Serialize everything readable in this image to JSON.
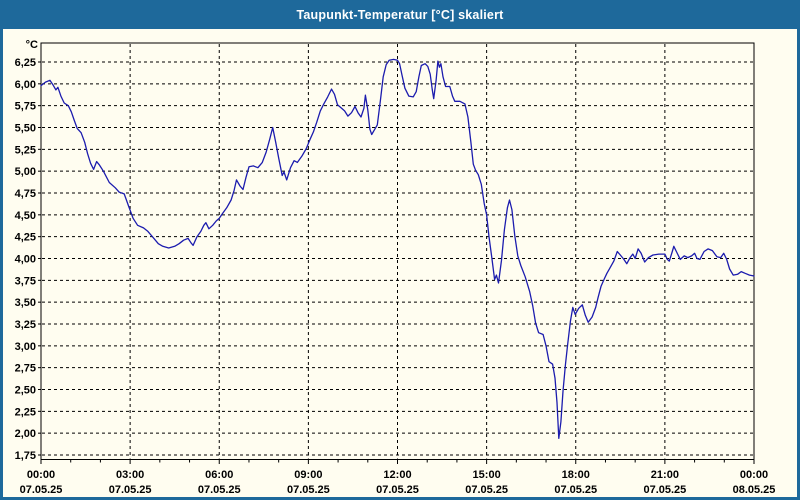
{
  "window": {
    "title": "Taupunkt-Temperatur [°C] skaliert",
    "colors": {
      "titlebar": "#1e699b",
      "title_text": "#ffffff",
      "background": "#fffdf0",
      "line": "#1c1cae",
      "grid": "#000000",
      "axis_text": "#000000"
    }
  },
  "chart_data": {
    "type": "line",
    "title": "Taupunkt-Temperatur [°C] skaliert",
    "unit_label": "°C",
    "legend": "none",
    "grid": "dashed",
    "x_axis": {
      "hours_span": 24,
      "major_step_hours": 3,
      "minor_step_hours": 1,
      "ticks": [
        {
          "time": "00:00",
          "date": "07.05.25"
        },
        {
          "time": "03:00",
          "date": "07.05.25"
        },
        {
          "time": "06:00",
          "date": "07.05.25"
        },
        {
          "time": "09:00",
          "date": "07.05.25"
        },
        {
          "time": "12:00",
          "date": "07.05.25"
        },
        {
          "time": "15:00",
          "date": "07.05.25"
        },
        {
          "time": "18:00",
          "date": "07.05.25"
        },
        {
          "time": "21:00",
          "date": "07.05.25"
        },
        {
          "time": "00:00",
          "date": "08.05.25"
        }
      ]
    },
    "y_axis": {
      "min": 1.75,
      "max": 6.25,
      "step": 0.25,
      "decimal_separator": ",",
      "tick_labels": [
        "6,25",
        "6,00",
        "5,75",
        "5,50",
        "5,25",
        "5,00",
        "4,75",
        "4,50",
        "4,25",
        "4,00",
        "3,75",
        "3,50",
        "3,25",
        "3,00",
        "2,75",
        "2,50",
        "2,25",
        "2,00",
        "1,75"
      ]
    },
    "series": [
      {
        "name": "Taupunkt-Temperatur",
        "points": [
          [
            0.0,
            5.98
          ],
          [
            0.15,
            6.02
          ],
          [
            0.3,
            6.04
          ],
          [
            0.4,
            5.99
          ],
          [
            0.5,
            5.93
          ],
          [
            0.57,
            5.96
          ],
          [
            0.67,
            5.86
          ],
          [
            0.78,
            5.78
          ],
          [
            0.92,
            5.75
          ],
          [
            1.02,
            5.68
          ],
          [
            1.12,
            5.58
          ],
          [
            1.22,
            5.49
          ],
          [
            1.35,
            5.44
          ],
          [
            1.47,
            5.33
          ],
          [
            1.57,
            5.2
          ],
          [
            1.67,
            5.09
          ],
          [
            1.77,
            5.02
          ],
          [
            1.87,
            5.11
          ],
          [
            1.97,
            5.07
          ],
          [
            2.1,
            5.0
          ],
          [
            2.3,
            4.87
          ],
          [
            2.5,
            4.81
          ],
          [
            2.63,
            4.76
          ],
          [
            2.8,
            4.74
          ],
          [
            2.95,
            4.6
          ],
          [
            3.1,
            4.46
          ],
          [
            3.25,
            4.38
          ],
          [
            3.45,
            4.35
          ],
          [
            3.6,
            4.31
          ],
          [
            3.8,
            4.23
          ],
          [
            3.95,
            4.17
          ],
          [
            4.1,
            4.14
          ],
          [
            4.3,
            4.12
          ],
          [
            4.5,
            4.14
          ],
          [
            4.65,
            4.17
          ],
          [
            4.8,
            4.21
          ],
          [
            4.95,
            4.23
          ],
          [
            5.05,
            4.18
          ],
          [
            5.12,
            4.15
          ],
          [
            5.25,
            4.25
          ],
          [
            5.38,
            4.31
          ],
          [
            5.48,
            4.38
          ],
          [
            5.55,
            4.41
          ],
          [
            5.65,
            4.34
          ],
          [
            5.78,
            4.38
          ],
          [
            5.9,
            4.43
          ],
          [
            6.0,
            4.46
          ],
          [
            6.12,
            4.52
          ],
          [
            6.25,
            4.58
          ],
          [
            6.4,
            4.67
          ],
          [
            6.5,
            4.78
          ],
          [
            6.58,
            4.9
          ],
          [
            6.7,
            4.83
          ],
          [
            6.8,
            4.79
          ],
          [
            6.9,
            4.93
          ],
          [
            7.0,
            5.05
          ],
          [
            7.15,
            5.06
          ],
          [
            7.3,
            5.04
          ],
          [
            7.45,
            5.1
          ],
          [
            7.58,
            5.22
          ],
          [
            7.7,
            5.37
          ],
          [
            7.8,
            5.5
          ],
          [
            7.9,
            5.33
          ],
          [
            8.0,
            5.15
          ],
          [
            8.12,
            4.95
          ],
          [
            8.18,
            4.99
          ],
          [
            8.27,
            4.9
          ],
          [
            8.4,
            5.04
          ],
          [
            8.52,
            5.12
          ],
          [
            8.63,
            5.1
          ],
          [
            8.78,
            5.17
          ],
          [
            8.93,
            5.26
          ],
          [
            9.05,
            5.36
          ],
          [
            9.17,
            5.45
          ],
          [
            9.28,
            5.56
          ],
          [
            9.4,
            5.69
          ],
          [
            9.52,
            5.77
          ],
          [
            9.65,
            5.85
          ],
          [
            9.78,
            5.94
          ],
          [
            9.88,
            5.88
          ],
          [
            9.98,
            5.76
          ],
          [
            10.12,
            5.72
          ],
          [
            10.22,
            5.69
          ],
          [
            10.33,
            5.63
          ],
          [
            10.45,
            5.67
          ],
          [
            10.57,
            5.74
          ],
          [
            10.67,
            5.67
          ],
          [
            10.77,
            5.62
          ],
          [
            10.87,
            5.72
          ],
          [
            10.92,
            5.87
          ],
          [
            11.0,
            5.7
          ],
          [
            11.07,
            5.48
          ],
          [
            11.13,
            5.42
          ],
          [
            11.22,
            5.47
          ],
          [
            11.32,
            5.53
          ],
          [
            11.42,
            5.8
          ],
          [
            11.52,
            6.08
          ],
          [
            11.62,
            6.22
          ],
          [
            11.72,
            6.27
          ],
          [
            11.87,
            6.28
          ],
          [
            12.0,
            6.27
          ],
          [
            12.07,
            6.23
          ],
          [
            12.15,
            6.1
          ],
          [
            12.25,
            5.95
          ],
          [
            12.38,
            5.86
          ],
          [
            12.53,
            5.85
          ],
          [
            12.63,
            5.91
          ],
          [
            12.72,
            6.08
          ],
          [
            12.8,
            6.21
          ],
          [
            12.93,
            6.23
          ],
          [
            13.02,
            6.2
          ],
          [
            13.1,
            6.11
          ],
          [
            13.17,
            5.93
          ],
          [
            13.22,
            5.83
          ],
          [
            13.3,
            6.04
          ],
          [
            13.36,
            6.26
          ],
          [
            13.41,
            6.19
          ],
          [
            13.46,
            6.23
          ],
          [
            13.53,
            6.08
          ],
          [
            13.62,
            5.97
          ],
          [
            13.76,
            5.97
          ],
          [
            13.85,
            5.86
          ],
          [
            13.93,
            5.8
          ],
          [
            14.1,
            5.8
          ],
          [
            14.27,
            5.77
          ],
          [
            14.37,
            5.62
          ],
          [
            14.47,
            5.33
          ],
          [
            14.55,
            5.08
          ],
          [
            14.63,
            5.01
          ],
          [
            14.72,
            4.96
          ],
          [
            14.82,
            4.85
          ],
          [
            14.92,
            4.63
          ],
          [
            15.0,
            4.5
          ],
          [
            15.08,
            4.25
          ],
          [
            15.17,
            4.02
          ],
          [
            15.27,
            3.76
          ],
          [
            15.33,
            3.81
          ],
          [
            15.4,
            3.72
          ],
          [
            15.5,
            3.98
          ],
          [
            15.6,
            4.33
          ],
          [
            15.7,
            4.58
          ],
          [
            15.77,
            4.67
          ],
          [
            15.85,
            4.56
          ],
          [
            15.95,
            4.26
          ],
          [
            16.05,
            4.03
          ],
          [
            16.15,
            3.92
          ],
          [
            16.3,
            3.79
          ],
          [
            16.45,
            3.62
          ],
          [
            16.55,
            3.46
          ],
          [
            16.65,
            3.26
          ],
          [
            16.75,
            3.15
          ],
          [
            16.9,
            3.13
          ],
          [
            17.0,
            3.0
          ],
          [
            17.1,
            2.82
          ],
          [
            17.22,
            2.79
          ],
          [
            17.3,
            2.63
          ],
          [
            17.37,
            2.35
          ],
          [
            17.43,
            1.94
          ],
          [
            17.5,
            2.13
          ],
          [
            17.57,
            2.48
          ],
          [
            17.65,
            2.78
          ],
          [
            17.73,
            3.02
          ],
          [
            17.82,
            3.28
          ],
          [
            17.9,
            3.44
          ],
          [
            17.98,
            3.36
          ],
          [
            18.1,
            3.43
          ],
          [
            18.22,
            3.47
          ],
          [
            18.32,
            3.35
          ],
          [
            18.42,
            3.27
          ],
          [
            18.55,
            3.33
          ],
          [
            18.67,
            3.44
          ],
          [
            18.75,
            3.55
          ],
          [
            18.85,
            3.68
          ],
          [
            18.95,
            3.76
          ],
          [
            19.05,
            3.83
          ],
          [
            19.15,
            3.89
          ],
          [
            19.28,
            3.97
          ],
          [
            19.4,
            4.08
          ],
          [
            19.5,
            4.04
          ],
          [
            19.62,
            3.99
          ],
          [
            19.72,
            3.94
          ],
          [
            19.83,
            4.01
          ],
          [
            19.92,
            4.05
          ],
          [
            20.0,
            4.0
          ],
          [
            20.1,
            4.11
          ],
          [
            20.2,
            4.06
          ],
          [
            20.32,
            3.96
          ],
          [
            20.45,
            4.01
          ],
          [
            20.6,
            4.04
          ],
          [
            20.8,
            4.05
          ],
          [
            21.0,
            4.05
          ],
          [
            21.08,
            3.99
          ],
          [
            21.15,
            3.97
          ],
          [
            21.25,
            4.08
          ],
          [
            21.3,
            4.14
          ],
          [
            21.4,
            4.07
          ],
          [
            21.52,
            3.99
          ],
          [
            21.65,
            4.03
          ],
          [
            21.77,
            4.01
          ],
          [
            21.9,
            4.03
          ],
          [
            22.0,
            4.06
          ],
          [
            22.08,
            4.0
          ],
          [
            22.18,
            3.99
          ],
          [
            22.32,
            4.08
          ],
          [
            22.45,
            4.11
          ],
          [
            22.6,
            4.09
          ],
          [
            22.75,
            4.02
          ],
          [
            22.88,
            4.01
          ],
          [
            22.98,
            4.06
          ],
          [
            23.08,
            3.99
          ],
          [
            23.18,
            3.88
          ],
          [
            23.3,
            3.81
          ],
          [
            23.45,
            3.82
          ],
          [
            23.57,
            3.85
          ],
          [
            23.7,
            3.83
          ],
          [
            23.85,
            3.81
          ],
          [
            24.0,
            3.8
          ]
        ]
      }
    ]
  }
}
